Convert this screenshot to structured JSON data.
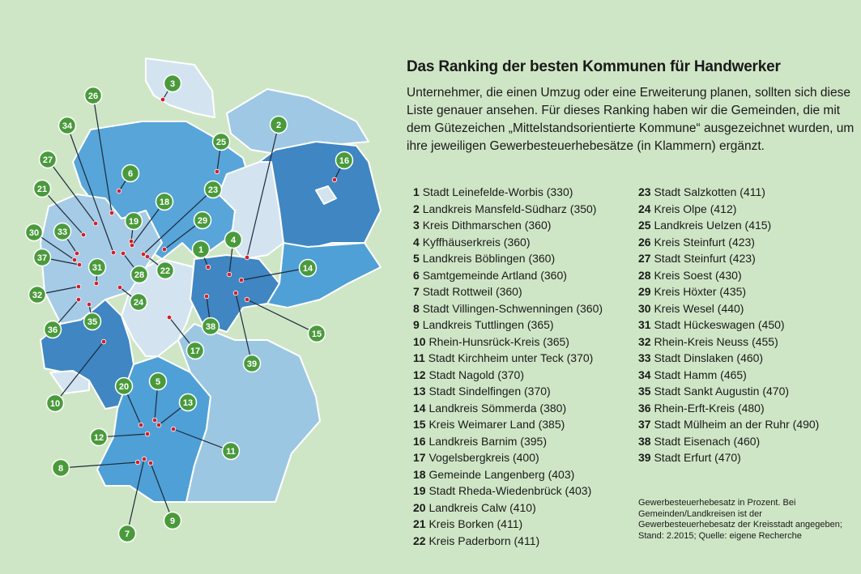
{
  "title": "Das Ranking der besten Kommunen für Handwerker",
  "intro": "Unternehmer, die einen Umzug oder eine Erweiterung planen, sollten sich diese Liste genauer ansehen. Für dieses Ranking haben wir die Gemeinden, die mit dem Gütezeichen „Mittelstandsorientierte Kommune“ ausgezeichnet wurden, um ihre jeweiligen Gewerbesteuerhebesätze (in Klammern) ergänzt.",
  "colors": {
    "background": "#cfe6c6",
    "marker": "#4a9a3c",
    "dot": "#d0202e",
    "state_light": "#d3e4f0",
    "state_mid": "#9fc8e4",
    "state_medium": "#57a5d9",
    "state_dark": "#3f86c2"
  },
  "ranking": [
    {
      "rank": "1",
      "name": "Stadt Leinefelde-Worbis (330)"
    },
    {
      "rank": "2",
      "name": "Landkreis Mansfeld-Südharz (350)"
    },
    {
      "rank": "3",
      "name": "Kreis Dithmarschen (360)"
    },
    {
      "rank": "4",
      "name": "Kyffhäuserkreis (360)"
    },
    {
      "rank": "5",
      "name": "Landkreis Böblingen (360)"
    },
    {
      "rank": "6",
      "name": "Samtgemeinde Artland (360)"
    },
    {
      "rank": "7",
      "name": "Stadt Rottweil (360)"
    },
    {
      "rank": "8",
      "name": "Stadt Villingen-Schwenningen (360)"
    },
    {
      "rank": "9",
      "name": "Landkreis Tuttlingen (365)"
    },
    {
      "rank": "10",
      "name": "Rhein-Hunsrück-Kreis (365)"
    },
    {
      "rank": "11",
      "name": "Stadt Kirchheim unter Teck (370)"
    },
    {
      "rank": "12",
      "name": "Stadt Nagold (370)"
    },
    {
      "rank": "13",
      "name": "Stadt Sindelfingen (370)"
    },
    {
      "rank": "14",
      "name": "Landkreis Sömmerda (380)"
    },
    {
      "rank": "15",
      "name": "Kreis Weimarer Land (385)"
    },
    {
      "rank": "16",
      "name": "Landkreis Barnim (395)"
    },
    {
      "rank": "17",
      "name": "Vogelsbergkreis (400)"
    },
    {
      "rank": "18",
      "name": "Gemeinde Langenberg (403)"
    },
    {
      "rank": "19",
      "name": "Stadt Rheda-Wiedenbrück (403)"
    },
    {
      "rank": "20",
      "name": "Landkreis Calw (410)"
    },
    {
      "rank": "21",
      "name": "Kreis Borken (411)"
    },
    {
      "rank": "22",
      "name": "Kreis Paderborn (411)"
    },
    {
      "rank": "23",
      "name": "Stadt Salzkotten (411)"
    },
    {
      "rank": "24",
      "name": "Kreis Olpe (412)"
    },
    {
      "rank": "25",
      "name": "Landkreis Uelzen (415)"
    },
    {
      "rank": "26",
      "name": "Kreis Steinfurt (423)"
    },
    {
      "rank": "27",
      "name": "Stadt Steinfurt (423)"
    },
    {
      "rank": "28",
      "name": "Kreis Soest (430)"
    },
    {
      "rank": "29",
      "name": "Kreis Höxter (435)"
    },
    {
      "rank": "30",
      "name": "Kreis Wesel (440)"
    },
    {
      "rank": "31",
      "name": "Stadt Hückeswagen (450)"
    },
    {
      "rank": "32",
      "name": "Rhein-Kreis Neuss (455)"
    },
    {
      "rank": "33",
      "name": "Stadt Dinslaken (460)"
    },
    {
      "rank": "34",
      "name": "Stadt Hamm (465)"
    },
    {
      "rank": "35",
      "name": "Stadt Sankt Augustin (470)"
    },
    {
      "rank": "36",
      "name": "Rhein-Erft-Kreis (480)"
    },
    {
      "rank": "37",
      "name": "Stadt Mülheim an der Ruhr (490)"
    },
    {
      "rank": "38",
      "name": "Stadt Eisenach (460)"
    },
    {
      "rank": "39",
      "name": "Stadt Erfurt (470)"
    }
  ],
  "note": "Gewerbesteuerhebesatz in Prozent. Bei Gemeinden/Landkreisen ist der Gewerbesteuerhebesatz der Kreisstadt angegeben; Stand: 2.2015; Quelle: eigene Recherche"
}
